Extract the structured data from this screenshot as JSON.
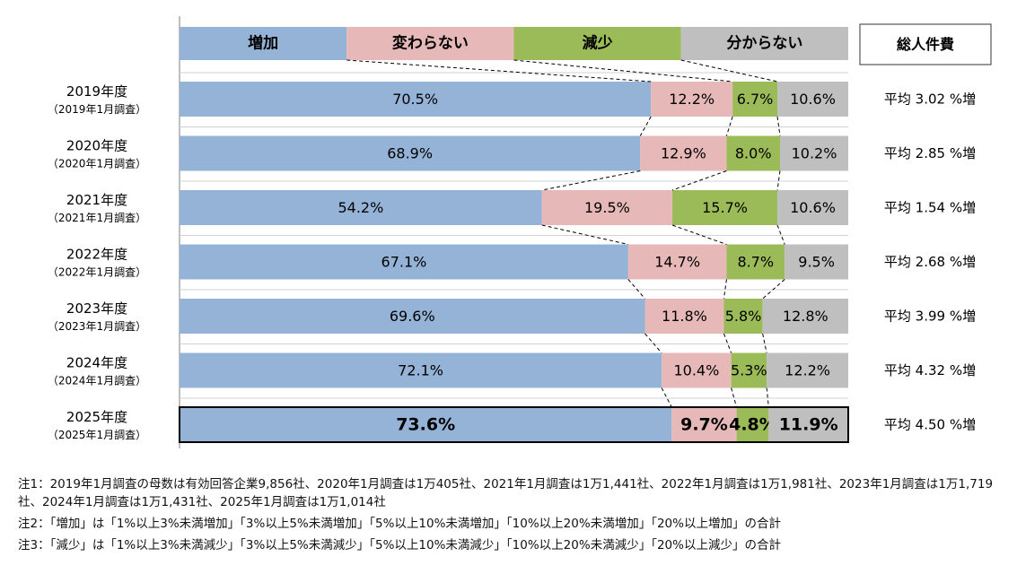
{
  "chart_data": {
    "type": "bar",
    "stacked": true,
    "orientation": "horizontal",
    "categories": [
      {
        "label": "2019年度",
        "sub": "（2019年1月調査）"
      },
      {
        "label": "2020年度",
        "sub": "（2020年1月調査）"
      },
      {
        "label": "2021年度",
        "sub": "（2021年1月調査）"
      },
      {
        "label": "2022年度",
        "sub": "（2022年1月調査）"
      },
      {
        "label": "2023年度",
        "sub": "（2023年1月調査）"
      },
      {
        "label": "2024年度",
        "sub": "（2024年1月調査）"
      },
      {
        "label": "2025年度",
        "sub": "（2025年1月調査）"
      }
    ],
    "series": [
      {
        "name": "増加",
        "color": "#95b3d7",
        "values": [
          70.5,
          68.9,
          54.2,
          67.1,
          69.6,
          72.1,
          73.6
        ],
        "labels": [
          "70.5%",
          "68.9%",
          "54.2%",
          "67.1%",
          "69.6%",
          "72.1%",
          "73.6%"
        ]
      },
      {
        "name": "変わらない",
        "color": "#e6b9b8",
        "values": [
          12.2,
          12.9,
          19.5,
          14.7,
          11.8,
          10.4,
          9.7
        ],
        "labels": [
          "12.2%",
          "12.9%",
          "19.5%",
          "14.7%",
          "11.8%",
          "10.4%",
          "9.7%"
        ]
      },
      {
        "name": "減少",
        "color": "#9bbb59",
        "values": [
          6.7,
          8.0,
          15.7,
          8.7,
          5.8,
          5.3,
          4.8
        ],
        "labels": [
          "6.7%",
          "8.0%",
          "15.7%",
          "8.7%",
          "5.8%",
          "5.3%",
          "4.8%"
        ]
      },
      {
        "name": "分からない",
        "color": "#bfbfbf",
        "values": [
          10.6,
          10.2,
          10.6,
          9.5,
          12.8,
          12.2,
          11.9
        ],
        "labels": [
          "10.6%",
          "10.2%",
          "10.6%",
          "9.5%",
          "12.8%",
          "12.2%",
          "11.9%"
        ]
      }
    ],
    "highlight_last": true,
    "side_header": "総人件費",
    "side_values": [
      "平均 3.02 %増",
      "平均 2.85 %増",
      "平均 1.54 %増",
      "平均 2.68 %増",
      "平均 3.99 %増",
      "平均 4.32 %増",
      "平均 4.50 %増"
    ],
    "xlim": [
      0,
      100
    ]
  },
  "notes": [
    "注1：2019年1月調査の母数は有効回答企業9,856社、2020年1月調査は1万405社、2021年1月調査は1万1,441社、2022年1月調査は1万1,981社、2023年1月調査は1万1,719社、2024年1月調査は1万1,431社、2025年1月調査は1万1,014社",
    "注2：「増加」は「1%以上3%未満増加」「3%以上5%未満増加」「5%以上10%未満増加」「10%以上20%未満増加」「20%以上増加」の合計",
    "注3：「減少」は「1%以上3%未満減少」「3%以上5%未満減少」「5%以上10%未満減少」「10%以上20%未満減少」「20%以上減少」の合計"
  ]
}
